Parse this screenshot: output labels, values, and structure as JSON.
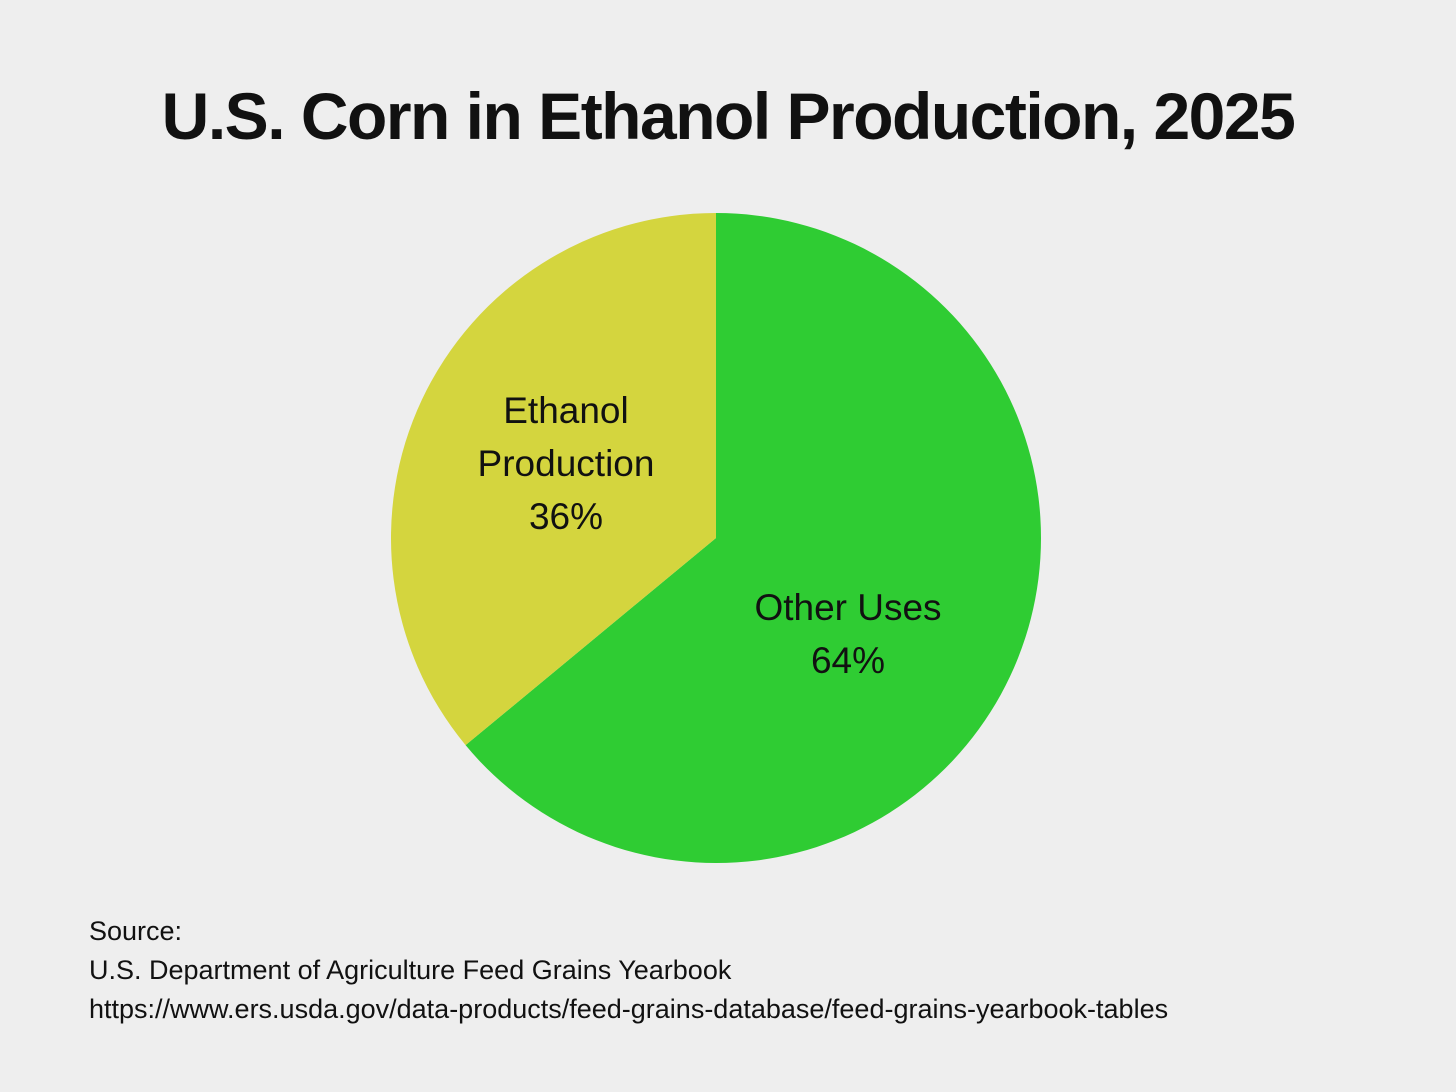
{
  "page": {
    "background_color": "#eeeeee"
  },
  "chart_data": {
    "type": "pie",
    "title": "U.S. Corn in Ethanol Production, 2025",
    "legend_position": "none",
    "labels_inside": true,
    "rotation_start": "12-oclock-clockwise",
    "slices": [
      {
        "id": "other-uses",
        "label": "Other Uses",
        "label_lines": [
          "Other Uses"
        ],
        "value": 64,
        "value_label": "64%",
        "color": "#2fcc33",
        "start_angle_deg": 0,
        "end_angle_deg": 230.4
      },
      {
        "id": "ethanol-production",
        "label": "Ethanol Production",
        "label_lines": [
          "Ethanol",
          "Production"
        ],
        "value": 36,
        "value_label": "36%",
        "color": "#d4d53e",
        "start_angle_deg": 230.4,
        "end_angle_deg": 360
      }
    ],
    "source": {
      "label": "Source:",
      "org": "U.S. Department of Agriculture Feed Grains Yearbook",
      "url": "https://www.ers.usda.gov/data-products/feed-grains-database/feed-grains-yearbook-tables"
    }
  }
}
